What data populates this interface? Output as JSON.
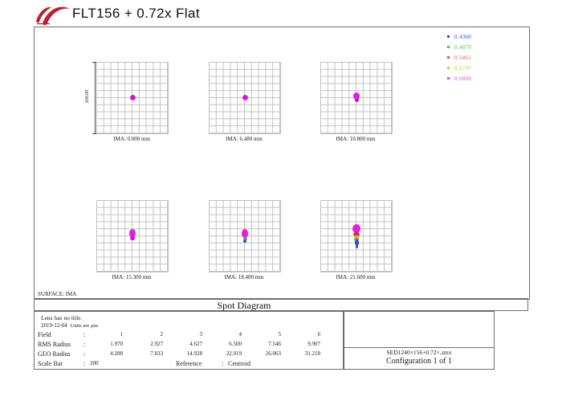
{
  "header": {
    "title": "FLT156 + 0.72x Flat"
  },
  "legend": [
    {
      "label": "0.4360",
      "color": "#3a3af0"
    },
    {
      "label": "0.4870",
      "color": "#42c842"
    },
    {
      "label": "0.5461",
      "color": "#e85050"
    },
    {
      "label": "0.6200",
      "color": "#cfcf3a"
    },
    {
      "label": "0.6800",
      "color": "#e048e0"
    }
  ],
  "scale_bar_axis_label": "200.00",
  "panels": [
    {
      "label": "IMA: 0.000 mm",
      "spots": [
        [
          0,
          -1,
          7,
          7,
          "#e81ae8"
        ],
        [
          0,
          -1,
          4,
          4,
          "#d012d0"
        ]
      ]
    },
    {
      "label": "IMA: 6.480 mm",
      "spots": [
        [
          0,
          -1,
          7,
          7,
          "#e81ae8"
        ],
        [
          0,
          -1,
          4,
          4,
          "#d012d0"
        ]
      ]
    },
    {
      "label": "IMA: 10.800 mm",
      "spots": [
        [
          0,
          -3,
          8,
          9,
          "#e81ae8"
        ],
        [
          0,
          2,
          5,
          5,
          "#c814c8"
        ]
      ]
    },
    {
      "label": "IMA: 15.300 mm",
      "spots": [
        [
          0,
          -4,
          8,
          11,
          "#e81ae8"
        ],
        [
          0,
          2,
          6,
          5,
          "#c814c8"
        ]
      ]
    },
    {
      "label": "IMA: 18.400 mm",
      "spots": [
        [
          0,
          -4,
          8,
          11,
          "#e81ae8"
        ],
        [
          0,
          3,
          5,
          4,
          "#38b038"
        ],
        [
          0,
          6,
          4,
          4,
          "#3848d8"
        ]
      ]
    },
    {
      "label": "IMA: 21.600 mm",
      "spots": [
        [
          0,
          -10,
          10,
          11,
          "#e81ae8"
        ],
        [
          0,
          -3,
          8,
          5,
          "#e03020"
        ],
        [
          0,
          1,
          7,
          4,
          "#d2c226"
        ],
        [
          0,
          4,
          6,
          4,
          "#34b834"
        ],
        [
          0,
          8,
          5,
          8,
          "#3848d8"
        ],
        [
          0,
          13,
          3,
          4,
          "#3848d8"
        ]
      ]
    }
  ],
  "surface_label": "SURFACE: IMA",
  "plot_title": "Spot Diagram",
  "info": {
    "line1": "Lens has no title.",
    "date": "2019-12-04",
    "units": "Units are µm.",
    "sep": ":",
    "rows": [
      {
        "label": "Field",
        "values": [
          "1",
          "2",
          "3",
          "4",
          "5",
          "6"
        ]
      },
      {
        "label": "RMS Radius",
        "values": [
          "1.970",
          "2.927",
          "4.627",
          "6.500",
          "7.546",
          "9.907"
        ]
      },
      {
        "label": "GEO Radius",
        "values": [
          "4.288",
          "7.833",
          "14.928",
          "22.919",
          "26.063",
          "31.218"
        ]
      }
    ],
    "scale_bar": {
      "label": "Scale Bar",
      "value": "200"
    },
    "reference": {
      "label": "Reference",
      "value": "Centroid"
    }
  },
  "footer": {
    "filename": "SED1240×156+0.72×.zmx",
    "configuration": "Configuration 1 of 1"
  },
  "chart_data": {
    "type": "scatter",
    "title": "Spot Diagram",
    "surface": "IMA",
    "layout": "2 rows x 3 columns of spot panels, 10x10 grid each, legend top-right",
    "wavelengths_um": [
      0.436,
      0.487,
      0.5461,
      0.62,
      0.68
    ],
    "wavelength_colors": [
      "#3a3af0",
      "#42c842",
      "#e85050",
      "#cfcf3a",
      "#e048e0"
    ],
    "field_numbers": [
      1,
      2,
      3,
      4,
      5,
      6
    ],
    "field_image_heights_mm": [
      0.0,
      6.48,
      10.8,
      15.3,
      18.4,
      21.6
    ],
    "rms_radius_um": [
      1.97,
      2.927,
      4.627,
      6.5,
      7.546,
      9.907
    ],
    "geo_radius_um": [
      4.288,
      7.833,
      14.928,
      22.919,
      26.063,
      31.218
    ],
    "scale_bar_um": 200,
    "reference": "Centroid",
    "date": "2019-12-04"
  }
}
